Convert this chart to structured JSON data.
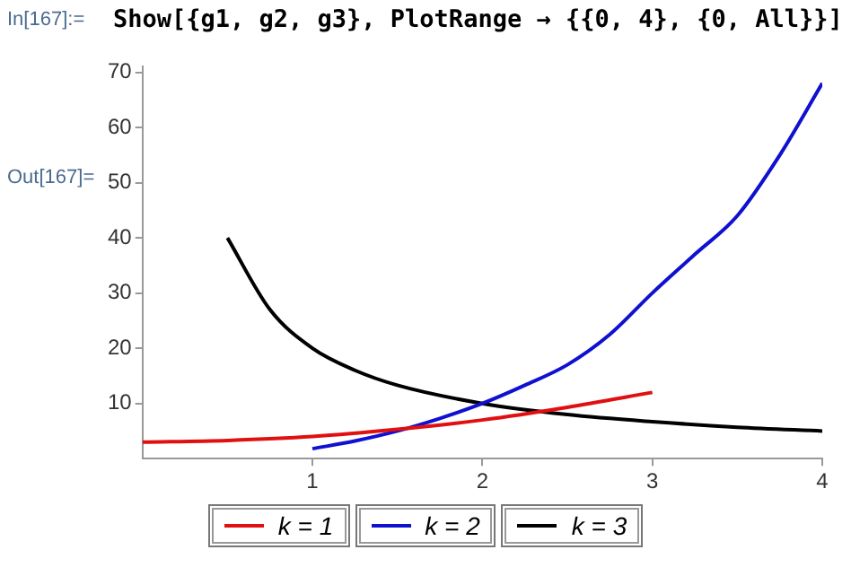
{
  "chart_data": {
    "type": "line",
    "annotations": [
      "In[167]:=",
      "Show[{g1, g2, g3}, PlotRange → {{0, 4}, {0, All}}]",
      "Out[167]="
    ],
    "series": [
      {
        "name": "k = 1",
        "color": "#e01010",
        "x": [
          0,
          0.5,
          1,
          1.5,
          2,
          2.5,
          3
        ],
        "values": [
          3,
          3.3,
          4,
          5.3,
          7,
          9.3,
          12
        ]
      },
      {
        "name": "k = 2",
        "color": "#1010d0",
        "x": [
          1,
          1.25,
          1.5,
          1.75,
          2,
          2.25,
          2.5,
          2.75,
          3,
          3.25,
          3.5,
          3.75,
          4
        ],
        "values": [
          1.8,
          3.2,
          5,
          7.3,
          10,
          13.3,
          17,
          22.5,
          30,
          37,
          44,
          55,
          68
        ]
      },
      {
        "name": "k = 3",
        "color": "#000000",
        "x": [
          0.5,
          0.75,
          1,
          1.25,
          1.5,
          2,
          2.5,
          3,
          3.5,
          4
        ],
        "values": [
          40,
          27,
          20,
          16,
          13.3,
          10,
          8,
          6.7,
          5.7,
          5
        ]
      }
    ],
    "xlim": [
      0,
      4
    ],
    "xticks": [
      1,
      2,
      3,
      4
    ],
    "ylim": [
      0,
      71
    ],
    "yticks": [
      10,
      20,
      30,
      40,
      50,
      60,
      70
    ],
    "grid": false,
    "legend": "bottom",
    "marker": "none",
    "line_style": "solid"
  }
}
